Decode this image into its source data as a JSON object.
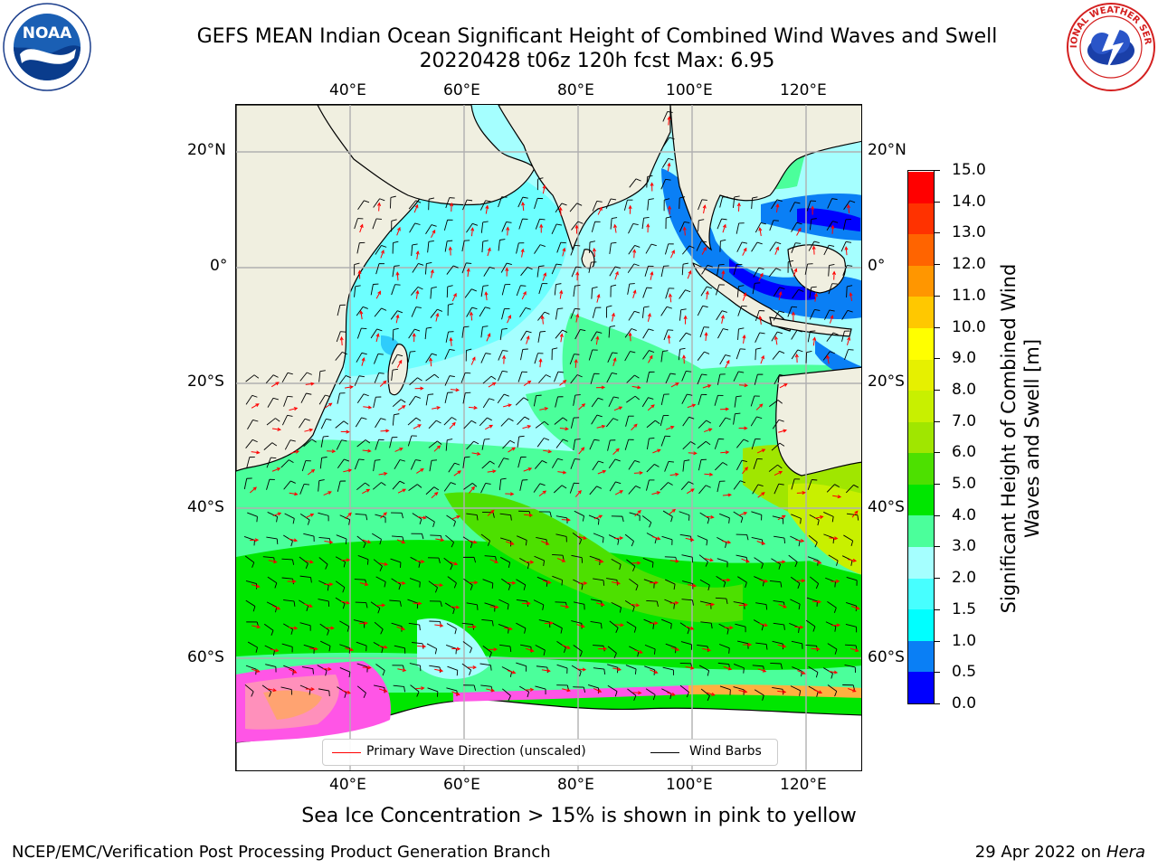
{
  "title": {
    "line1": "GEFS MEAN Indian Ocean Significant Height of Combined Wind Waves and Swell",
    "line2": "20220428 t06z 120h fcst   Max: 6.95"
  },
  "map": {
    "lon_ticks_top": [
      "40°E",
      "60°E",
      "80°E",
      "100°E",
      "120°E"
    ],
    "lon_ticks_bottom": [
      "40°E",
      "60°E",
      "80°E",
      "100°E",
      "120°E"
    ],
    "lat_ticks_left": [
      "20°N",
      "0°",
      "20°S",
      "40°S",
      "60°S"
    ],
    "lat_ticks_right": [
      "20°N",
      "0°",
      "20°S",
      "40°S",
      "60°S"
    ],
    "land_color": "#f0efe0",
    "gridline_color": "#b0b0b0"
  },
  "legend": {
    "wave_dir_label": "Primary Wave Direction (unscaled)",
    "wind_barb_label": "Wind Barbs",
    "wave_dir_color": "#ff0000",
    "wind_barb_color": "#000000"
  },
  "colorbar": {
    "title": "Significant Height of Combined Wind Waves and Swell [m]",
    "tick_labels": [
      "0.0",
      "0.5",
      "1.0",
      "1.5",
      "2.0",
      "3.0",
      "4.0",
      "5.0",
      "6.0",
      "7.0",
      "8.0",
      "9.0",
      "10.0",
      "11.0",
      "12.0",
      "13.0",
      "14.0",
      "15.0"
    ],
    "colors": [
      "#0000ff",
      "#0a7ff5",
      "#00ffff",
      "#47ffff",
      "#a5ffff",
      "#4bff9b",
      "#00e600",
      "#4de000",
      "#a0e600",
      "#c8f000",
      "#e6f000",
      "#ffff00",
      "#ffc800",
      "#ff9600",
      "#ff6400",
      "#ff3200",
      "#ff0000"
    ]
  },
  "footnote": "Sea Ice Concentration > 15% is shown in pink to yellow",
  "credit_left": "NCEP/EMC/Verification Post Processing Product Generation Branch",
  "credit_right_text": "29 Apr 2022 on ",
  "credit_right_host": "Hera",
  "logos": {
    "noaa_text": "NOAA",
    "nws_text": "NATIONAL WEATHER SERVICE"
  }
}
